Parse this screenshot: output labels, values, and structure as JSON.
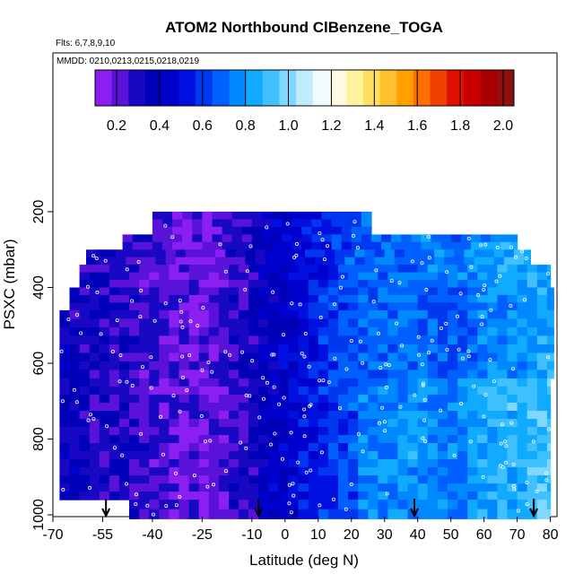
{
  "chart_data": {
    "type": "heatmap",
    "title": "ATOM2 Northbound ClBenzene_TOGA",
    "flights_label": "Flts: 6,7,8,9,10",
    "dates_label": "MMDD: 0210,0213,0215,0218,0219",
    "xlabel": "Latitude (deg N)",
    "ylabel": "PSXC (mbar)",
    "xlim": [
      -70,
      82
    ],
    "ylim": [
      1010,
      0
    ],
    "x_ticks": [
      -70,
      -55,
      -40,
      -25,
      -10,
      0,
      10,
      20,
      30,
      40,
      50,
      60,
      70,
      80
    ],
    "y_ticks": [
      200,
      400,
      600,
      800,
      1000
    ],
    "colorbar": {
      "range": [
        0.1,
        2.05
      ],
      "ticks": [
        "0.2",
        "0.4",
        "0.6",
        "0.8",
        "1.0",
        "1.2",
        "1.4",
        "1.6",
        "1.8",
        "2.0"
      ],
      "colors": [
        "#8a1ff0",
        "#5a12d8",
        "#1808c4",
        "#0000b8",
        "#0000cc",
        "#0010e0",
        "#0038f0",
        "#0060ff",
        "#0088ff",
        "#10aaff",
        "#40c0ff",
        "#80d8ff",
        "#c0ecff",
        "#f0faff",
        "#fffbe0",
        "#fff3a0",
        "#ffe060",
        "#ffc030",
        "#ffa000",
        "#ff7000",
        "#f04000",
        "#e01000",
        "#c80000",
        "#a80000",
        "#901010"
      ]
    },
    "profile_arrows_lat": [
      -54,
      -8,
      39,
      75
    ],
    "layers": [
      {
        "p_top": 200,
        "p_bot": 260,
        "x_min": -40,
        "x_max": 26
      },
      {
        "p_top": 260,
        "p_bot": 300,
        "x_min": -49,
        "x_max": 70
      },
      {
        "p_top": 300,
        "p_bot": 340,
        "x_min": -60,
        "x_max": 74
      },
      {
        "p_top": 340,
        "p_bot": 400,
        "x_min": -62,
        "x_max": 80
      },
      {
        "p_top": 400,
        "p_bot": 460,
        "x_min": -65,
        "x_max": 81
      },
      {
        "p_top": 460,
        "p_bot": 640,
        "x_min": -68,
        "x_max": 81
      },
      {
        "p_top": 640,
        "p_bot": 960,
        "x_min": -68,
        "x_max": 80
      },
      {
        "p_top": 960,
        "p_bot": 1010,
        "x_min": -47,
        "x_max": 80
      }
    ],
    "field_by_latitude": [
      {
        "lat": -68,
        "value": 0.35
      },
      {
        "lat": -55,
        "value": 0.3
      },
      {
        "lat": -40,
        "value": 0.25
      },
      {
        "lat": -25,
        "value": 0.18
      },
      {
        "lat": -12,
        "value": 0.3
      },
      {
        "lat": 0,
        "value": 0.45
      },
      {
        "lat": 10,
        "value": 0.55
      },
      {
        "lat": 20,
        "value": 0.65
      },
      {
        "lat": 30,
        "value": 0.7
      },
      {
        "lat": 40,
        "value": 0.72
      },
      {
        "lat": 50,
        "value": 0.65
      },
      {
        "lat": 60,
        "value": 0.75
      },
      {
        "lat": 70,
        "value": 0.8
      },
      {
        "lat": 80,
        "value": 0.82
      }
    ]
  }
}
